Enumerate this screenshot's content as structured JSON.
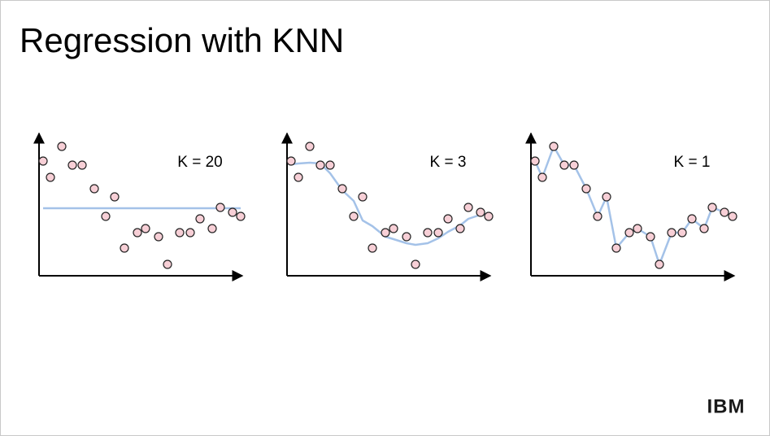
{
  "slide": {
    "title": "Regression with KNN",
    "logo": "IBM"
  },
  "chart_data": [
    {
      "type": "scatter",
      "annotation": "K = 20",
      "x": [
        5,
        14,
        28,
        41,
        53,
        68,
        82,
        93,
        105,
        121,
        131,
        147,
        158,
        173,
        186,
        198,
        213,
        223,
        238,
        248
      ],
      "values": [
        141,
        121,
        159,
        136,
        136,
        107,
        73,
        97,
        34,
        53,
        58,
        48,
        14,
        53,
        53,
        70,
        58,
        84,
        78,
        73
      ],
      "fit": [
        83,
        83,
        83,
        83,
        83,
        83,
        83,
        83,
        83,
        83,
        83,
        83,
        83,
        83,
        83,
        83,
        83,
        83,
        83,
        83
      ],
      "color": "#f7cfd6",
      "fit_color": "#a4c2e8",
      "xlim": [
        0,
        250
      ],
      "ylim": [
        0,
        175
      ]
    },
    {
      "type": "scatter",
      "annotation": "K = 3",
      "x": [
        5,
        14,
        28,
        41,
        53,
        68,
        82,
        93,
        105,
        121,
        131,
        147,
        158,
        173,
        186,
        198,
        213,
        223,
        238,
        248
      ],
      "values": [
        141,
        121,
        159,
        136,
        136,
        107,
        73,
        97,
        34,
        53,
        58,
        48,
        14,
        53,
        53,
        70,
        58,
        84,
        78,
        73
      ],
      "fit": [
        137,
        138,
        139,
        138,
        126,
        105,
        92,
        68,
        61,
        48,
        45,
        40,
        38,
        40,
        46,
        54,
        62,
        70,
        75,
        76
      ],
      "color": "#f7cfd6",
      "fit_color": "#a4c2e8",
      "xlim": [
        0,
        250
      ],
      "ylim": [
        0,
        175
      ]
    },
    {
      "type": "scatter",
      "annotation": "K = 1",
      "x": [
        5,
        14,
        28,
        41,
        53,
        68,
        82,
        93,
        105,
        121,
        131,
        147,
        158,
        173,
        186,
        198,
        213,
        223,
        238,
        248
      ],
      "values": [
        141,
        121,
        159,
        136,
        136,
        107,
        73,
        97,
        34,
        53,
        58,
        48,
        14,
        53,
        53,
        70,
        58,
        84,
        78,
        73
      ],
      "fit": [
        141,
        121,
        159,
        136,
        136,
        107,
        73,
        97,
        34,
        53,
        58,
        48,
        14,
        53,
        53,
        70,
        58,
        84,
        78,
        73
      ],
      "color": "#f7cfd6",
      "fit_color": "#a4c2e8",
      "xlim": [
        0,
        250
      ],
      "ylim": [
        0,
        175
      ]
    }
  ]
}
